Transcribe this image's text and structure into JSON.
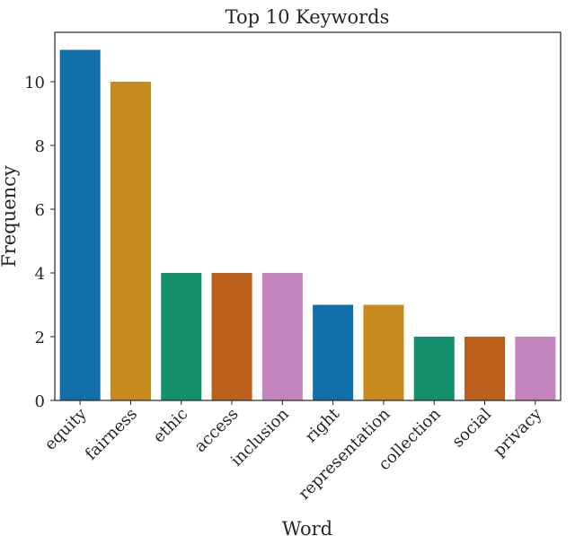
{
  "chart_data": {
    "type": "bar",
    "title": "Top 10 Keywords",
    "xlabel": "Word",
    "ylabel": "Frequency",
    "categories": [
      "equity",
      "fairness",
      "ethic",
      "access",
      "inclusion",
      "right",
      "representation",
      "collection",
      "social",
      "privacy"
    ],
    "values": [
      11,
      10,
      4,
      4,
      4,
      3,
      3,
      2,
      2,
      2
    ],
    "colors": [
      "#1170aa",
      "#c88a1e",
      "#148f6b",
      "#bd5f1c",
      "#c383bd",
      "#1170aa",
      "#c88a1e",
      "#148f6b",
      "#bd5f1c",
      "#c383bd"
    ],
    "yticks": [
      0,
      2,
      4,
      6,
      8,
      10
    ],
    "ylim": [
      0,
      11.55
    ],
    "grid": false,
    "legend": "none"
  }
}
